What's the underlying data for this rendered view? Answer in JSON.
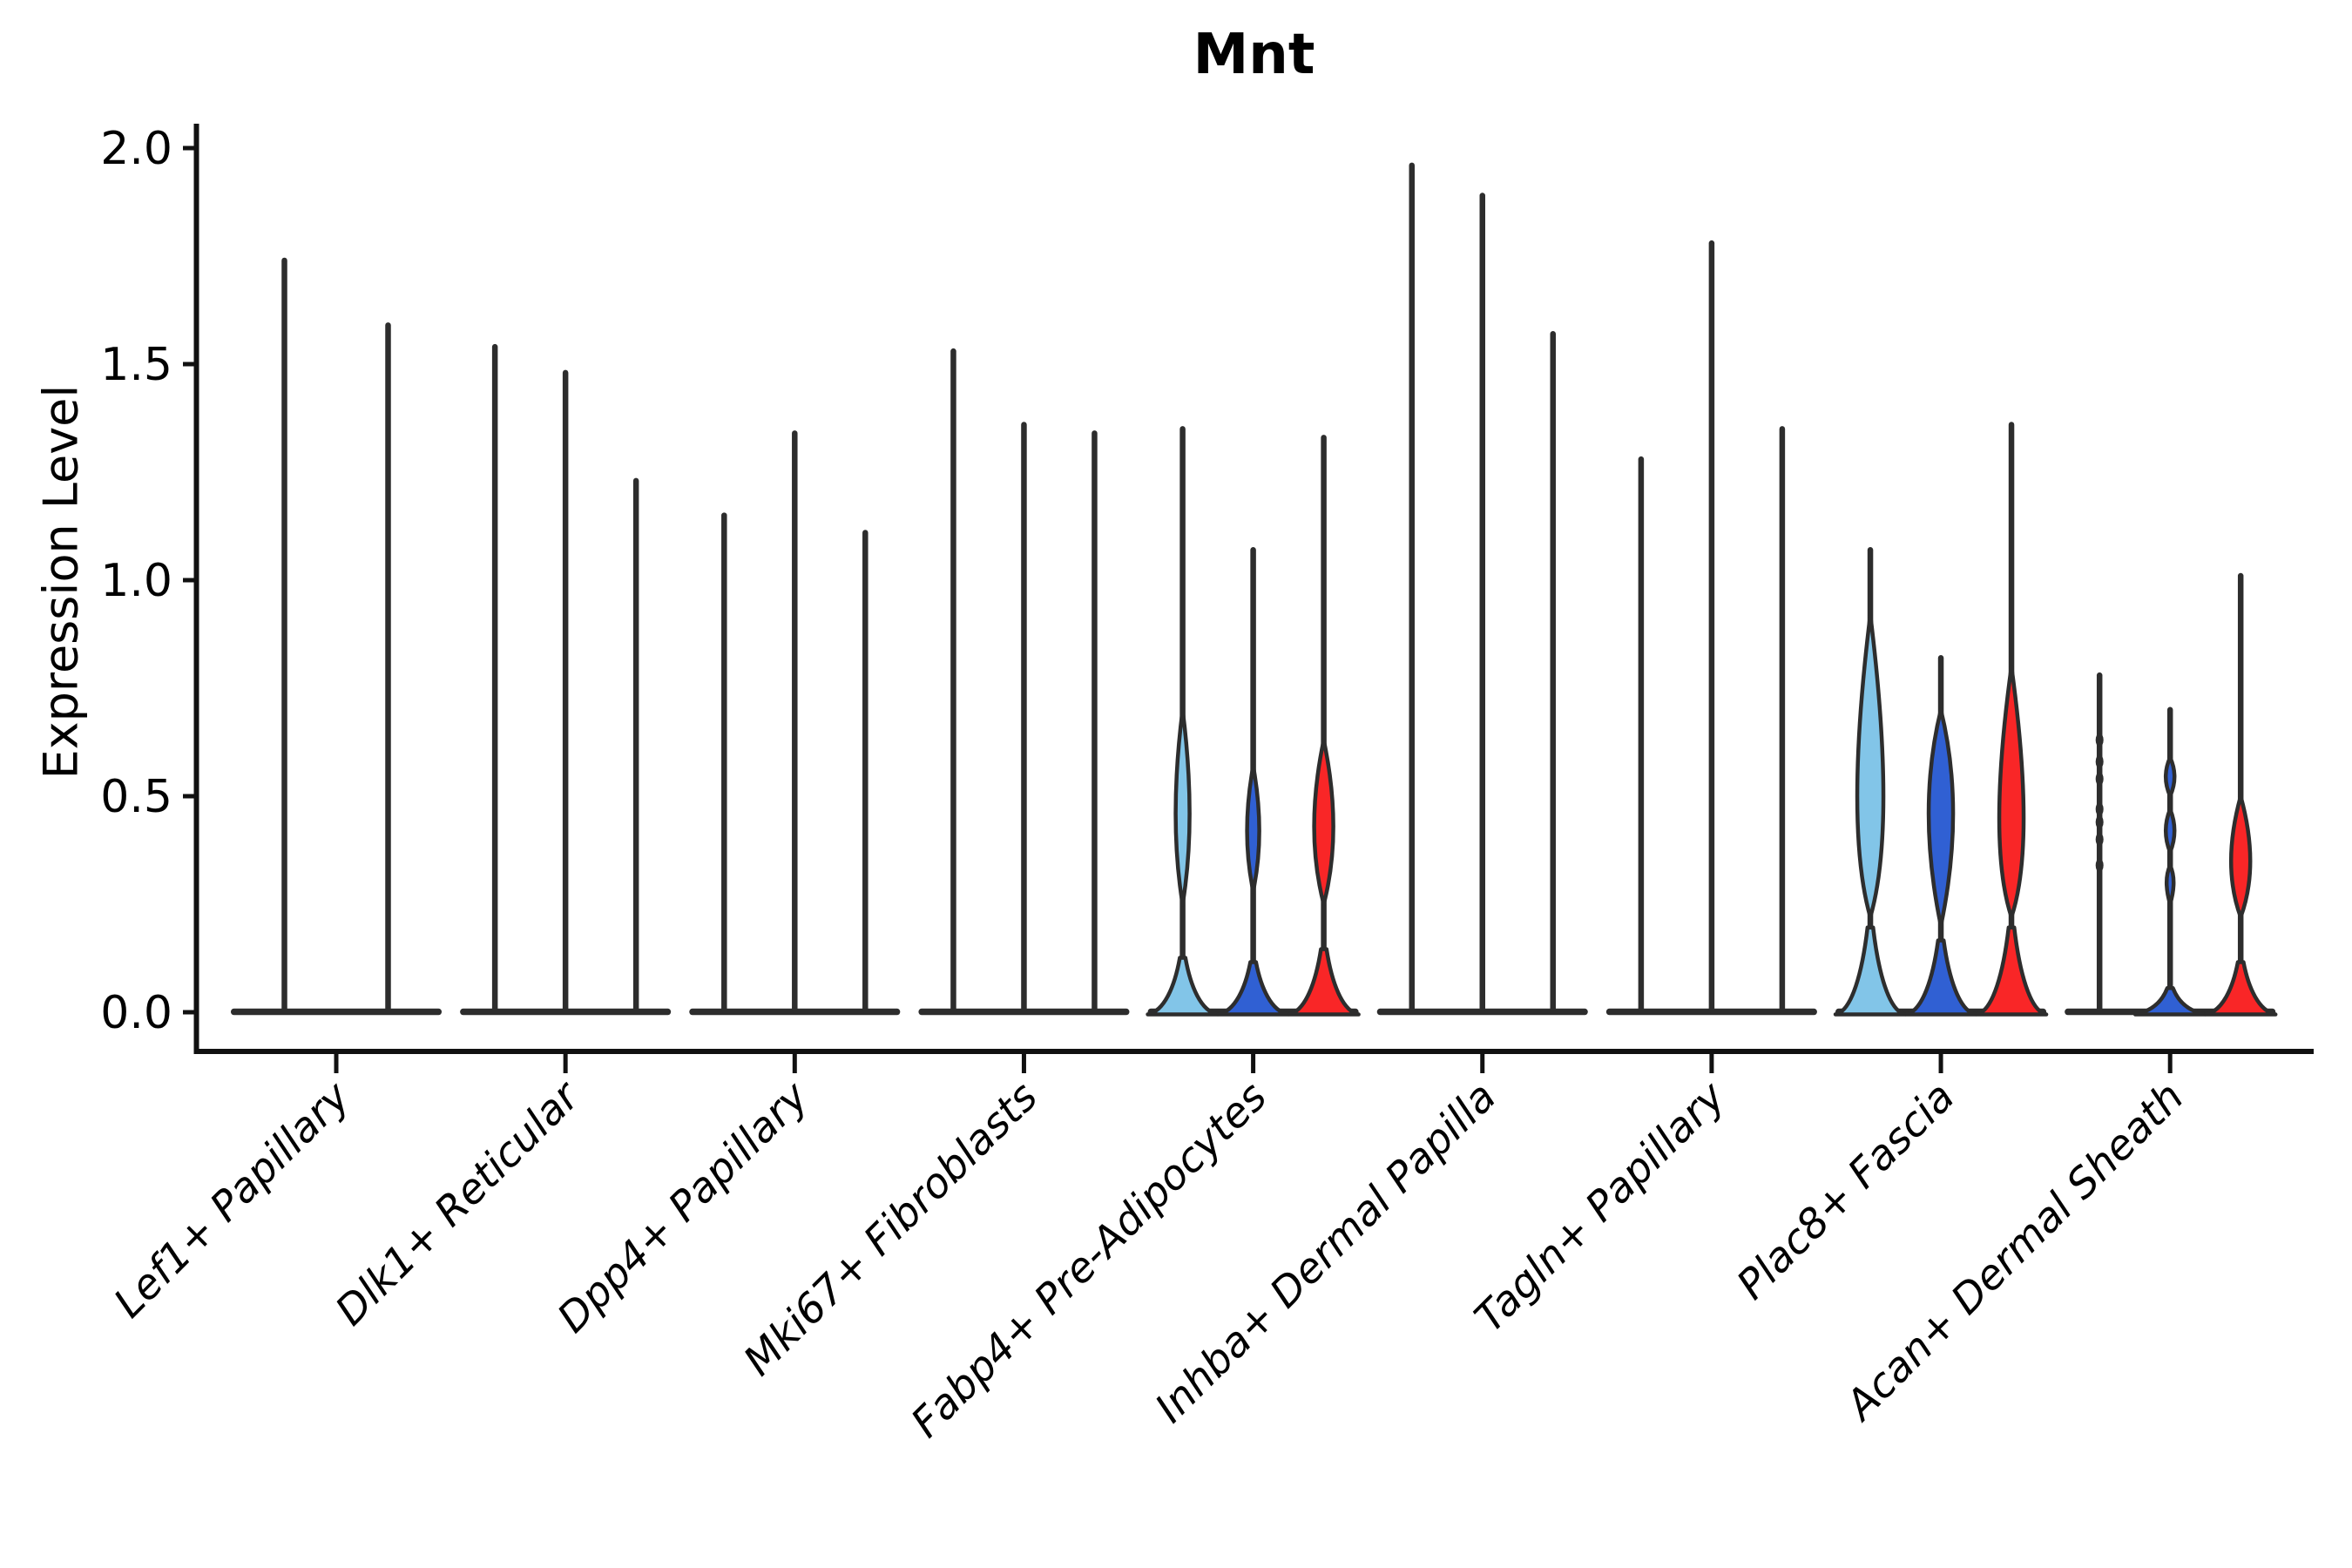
{
  "chart_data": {
    "type": "violin",
    "title": "Mnt",
    "ylabel": "Expression Level",
    "xlabel": "",
    "ylim": [
      0,
      2.05
    ],
    "yticks": [
      0.0,
      0.5,
      1.0,
      1.5,
      2.0
    ],
    "grid": false,
    "legend": "none",
    "x_tick_style": "italic, rotated 45, right-anchored",
    "colors": {
      "lightblue": "#82C5E8",
      "blue": "#3060D3",
      "red": "#F92627",
      "outline": "#2D2D2D",
      "axis": "#111111",
      "text": "#000000"
    },
    "series_note": "three color-coded split conditions per category: lightblue, blue, red",
    "categories": [
      "Lef1+ Papillary",
      "Dlk1+ Reticular",
      "Dpp4+ Papillary",
      "Mki67+ Fibroblasts",
      "Fabp4+ Pre-Adipocytes",
      "Inhba+ Dermal Papilla",
      "Tagln+ Papillary",
      "Plac8+ Fascia",
      "Acan+ Dermal Sheath"
    ],
    "groups": [
      {
        "label": "Lef1+ Papillary",
        "violins": [
          {
            "dx": -59.5,
            "max": 1.74,
            "fill": null
          },
          {
            "dx": 59.5,
            "max": 1.59,
            "fill": null
          }
        ]
      },
      {
        "label": "Dlk1+ Reticular",
        "violins": [
          {
            "dx": -81,
            "max": 1.54,
            "fill": null
          },
          {
            "dx": 0,
            "max": 1.48,
            "fill": null
          },
          {
            "dx": 81,
            "max": 1.23,
            "fill": null
          }
        ]
      },
      {
        "label": "Dpp4+ Papillary",
        "violins": [
          {
            "dx": -81,
            "max": 1.15,
            "fill": null
          },
          {
            "dx": 0,
            "max": 1.34,
            "fill": null
          },
          {
            "dx": 81,
            "max": 1.11,
            "fill": null
          }
        ]
      },
      {
        "label": "Mki67+ Fibroblasts",
        "violins": [
          {
            "dx": -81,
            "max": 1.53,
            "fill": null
          },
          {
            "dx": 0,
            "max": 1.36,
            "fill": null
          },
          {
            "dx": 81,
            "max": 1.34,
            "fill": null
          }
        ]
      },
      {
        "label": "Fabp4+ Pre-Adipocytes",
        "violins": [
          {
            "dx": -81,
            "max": 1.35,
            "fill": "lightblue",
            "lenses": [
              {
                "lo": 0.25,
                "hi": 0.7,
                "peak": 0.46,
                "hw": 8
              }
            ],
            "base": {
              "h": 0.13,
              "hw": 40
            }
          },
          {
            "dx": 0,
            "max": 1.07,
            "fill": "blue",
            "lenses": [
              {
                "lo": 0.28,
                "hi": 0.57,
                "peak": 0.42,
                "hw": 7
              }
            ],
            "base": {
              "h": 0.12,
              "hw": 40
            }
          },
          {
            "dx": 81,
            "max": 1.33,
            "fill": "red",
            "lenses": [
              {
                "lo": 0.25,
                "hi": 0.63,
                "peak": 0.43,
                "hw": 11
              }
            ],
            "base": {
              "h": 0.15,
              "hw": 40
            }
          }
        ]
      },
      {
        "label": "Inhba+ Dermal Papilla",
        "violins": [
          {
            "dx": -81,
            "max": 1.96,
            "fill": null
          },
          {
            "dx": 0,
            "max": 1.89,
            "fill": null
          },
          {
            "dx": 81,
            "max": 1.57,
            "fill": null
          }
        ]
      },
      {
        "label": "Tagln+ Papillary",
        "violins": [
          {
            "dx": -81,
            "max": 1.28,
            "fill": null
          },
          {
            "dx": 0,
            "max": 1.78,
            "fill": null
          },
          {
            "dx": 81,
            "max": 1.35,
            "fill": null
          }
        ]
      },
      {
        "label": "Plac8+ Fascia",
        "violins": [
          {
            "dx": -81,
            "max": 1.07,
            "fill": "lightblue",
            "lenses": [
              {
                "lo": 0.22,
                "hi": 0.92,
                "peak": 0.5,
                "hw": 15
              }
            ],
            "base": {
              "h": 0.2,
              "hw": 40
            }
          },
          {
            "dx": 0,
            "max": 0.82,
            "fill": "blue",
            "lenses": [
              {
                "lo": 0.2,
                "hi": 0.7,
                "peak": 0.46,
                "hw": 14
              }
            ],
            "base": {
              "h": 0.17,
              "hw": 40
            }
          },
          {
            "dx": 81,
            "max": 1.36,
            "fill": "red",
            "lenses": [
              {
                "lo": 0.22,
                "hi": 0.8,
                "peak": 0.45,
                "hw": 14
              }
            ],
            "base": {
              "h": 0.2,
              "hw": 40
            }
          }
        ]
      },
      {
        "label": "Acan+ Dermal Sheath",
        "violins": [
          {
            "dx": -81,
            "max": 0.78,
            "fill": null,
            "nubs": [
              0.63,
              0.58,
              0.54,
              0.47,
              0.44,
              0.4,
              0.34
            ]
          },
          {
            "dx": 0,
            "max": 0.7,
            "fill": "blue",
            "lenses": [
              {
                "lo": 0.5,
                "hi": 0.59,
                "peak": 0.545,
                "hw": 5
              },
              {
                "lo": 0.37,
                "hi": 0.47,
                "peak": 0.42,
                "hw": 5
              },
              {
                "lo": 0.25,
                "hi": 0.34,
                "peak": 0.3,
                "hw": 4
              }
            ],
            "base": {
              "h": 0.06,
              "hw": 40
            }
          },
          {
            "dx": 81,
            "max": 1.01,
            "fill": "red",
            "lenses": [
              {
                "lo": 0.22,
                "hi": 0.5,
                "peak": 0.35,
                "hw": 11
              }
            ],
            "base": {
              "h": 0.12,
              "hw": 40
            }
          }
        ]
      }
    ]
  }
}
